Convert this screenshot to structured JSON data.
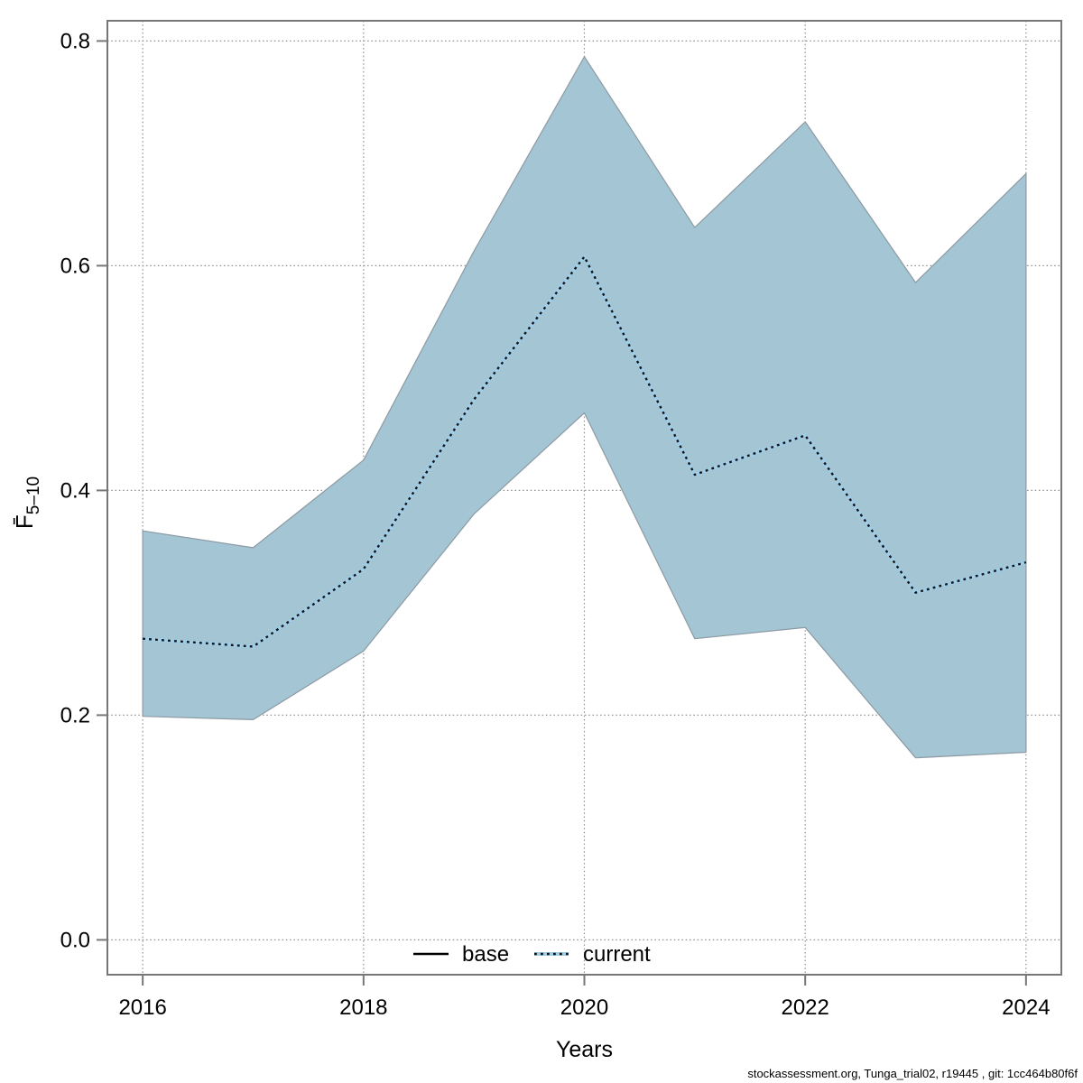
{
  "footer": "stockassessment.org, Tunga_trial02, r19445 , git: 1cc464b80f6f",
  "chart_data": {
    "type": "area",
    "title": "",
    "xlabel": "Years",
    "ylabel": {
      "main": "F̄",
      "sub": "5–10"
    },
    "x": [
      2016,
      2017,
      2018,
      2019,
      2020,
      2021,
      2022,
      2023,
      2024
    ],
    "xlim": [
      2015.68,
      2024.32
    ],
    "ylim": [
      -0.031,
      0.818
    ],
    "xticks": [
      "2016",
      "2018",
      "2020",
      "2022",
      "2024"
    ],
    "yticks": [
      "0.0",
      "0.2",
      "0.4",
      "0.6",
      "0.8"
    ],
    "grid": true,
    "band": {
      "label": "confidence-band",
      "high": [
        0.364,
        0.349,
        0.427,
        0.613,
        0.786,
        0.634,
        0.728,
        0.585,
        0.682
      ],
      "low": [
        0.199,
        0.196,
        0.257,
        0.379,
        0.469,
        0.268,
        0.278,
        0.162,
        0.167
      ],
      "fill": "#a4c5d4",
      "edge": "#8c9aa3"
    },
    "series": [
      {
        "name": "base",
        "style": "solid",
        "color": "#000000",
        "values": [
          0.268,
          0.261,
          0.33,
          0.481,
          0.608,
          0.414,
          0.449,
          0.309,
          0.336
        ]
      },
      {
        "name": "current",
        "style": "dotted",
        "color": "#9fcde8",
        "overlay_color": "#141414",
        "values": [
          0.268,
          0.261,
          0.33,
          0.481,
          0.608,
          0.414,
          0.449,
          0.309,
          0.336
        ]
      }
    ],
    "legend": {
      "position": "bottom",
      "items": [
        {
          "label": "base",
          "style": "solid",
          "color": "#000000"
        },
        {
          "label": "current",
          "style": "dotted",
          "color": "#9fcde8"
        }
      ]
    },
    "colors": {
      "grid": "#8f8f8f",
      "box": "#777777",
      "tick": "#777777",
      "text": "#000000"
    }
  }
}
